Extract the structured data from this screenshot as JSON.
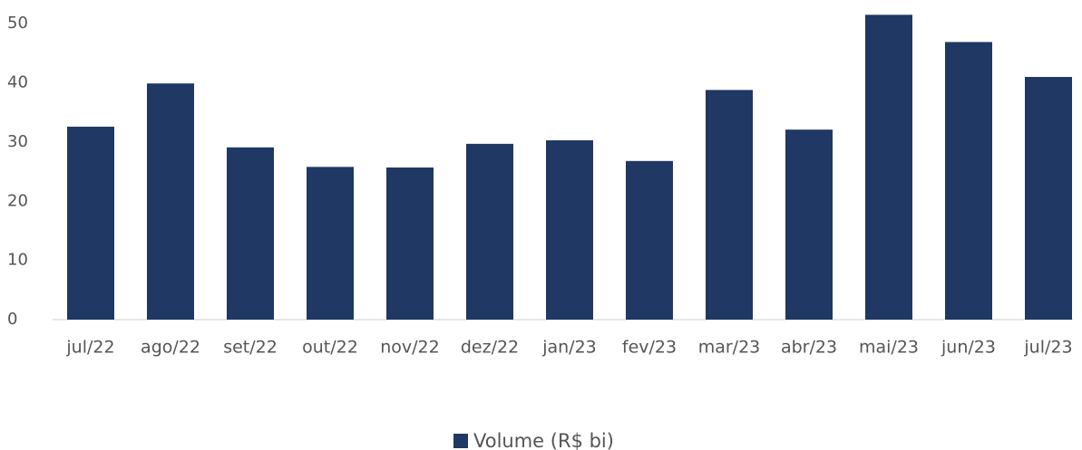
{
  "chart_data": {
    "type": "bar",
    "categories": [
      "jul/22",
      "ago/22",
      "set/22",
      "out/22",
      "nov/22",
      "dez/22",
      "jan/23",
      "fev/23",
      "mar/23",
      "abr/23",
      "mai/23",
      "jun/23",
      "jul/23"
    ],
    "series": [
      {
        "name": "Volume (R$ bi)",
        "color": "#1f3864",
        "values": [
          32.6,
          39.9,
          29.1,
          25.8,
          25.7,
          29.7,
          30.3,
          26.8,
          38.8,
          32.1,
          51.5,
          46.9,
          41.0
        ]
      }
    ],
    "ylim": [
      0,
      54
    ],
    "yticks": [
      0,
      10,
      20,
      30,
      40,
      50
    ],
    "grid": false,
    "legend": "bottom"
  }
}
